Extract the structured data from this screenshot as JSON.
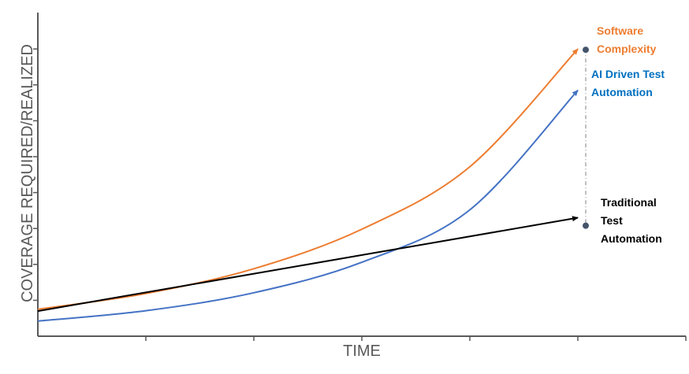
{
  "chart_data": {
    "type": "line",
    "title": "",
    "xlabel": "TIME",
    "ylabel": "COVERAGE REQUIRED/REALIZED",
    "x_ticks": 6,
    "y_ticks": 8,
    "grid": false,
    "legend": "none",
    "xlim": [
      0,
      6
    ],
    "ylim": [
      0,
      8
    ],
    "series": [
      {
        "name": "Software Complexity",
        "color": "#ED7D31",
        "type": "exponential",
        "x": [
          0,
          1,
          2,
          3,
          4,
          5
        ],
        "y": [
          0.75,
          1.19,
          1.88,
          2.98,
          4.72,
          8.0
        ],
        "marker_end": true
      },
      {
        "name": "AI Driven Test Automation",
        "color": "#4472C4",
        "type": "exponential",
        "x": [
          0,
          1,
          2,
          3,
          4,
          5
        ],
        "y": [
          0.42,
          0.71,
          1.21,
          2.06,
          3.52,
          6.85
        ],
        "marker_end": false
      },
      {
        "name": "Traditional Test Automation",
        "color": "#000000",
        "type": "linear",
        "x": [
          0,
          5
        ],
        "y": [
          0.7,
          3.3
        ],
        "marker_end": true
      }
    ],
    "annotations": [
      {
        "type": "dashed-vertical",
        "x": 5,
        "y_from": 3.1,
        "y_to": 8.0
      }
    ]
  }
}
